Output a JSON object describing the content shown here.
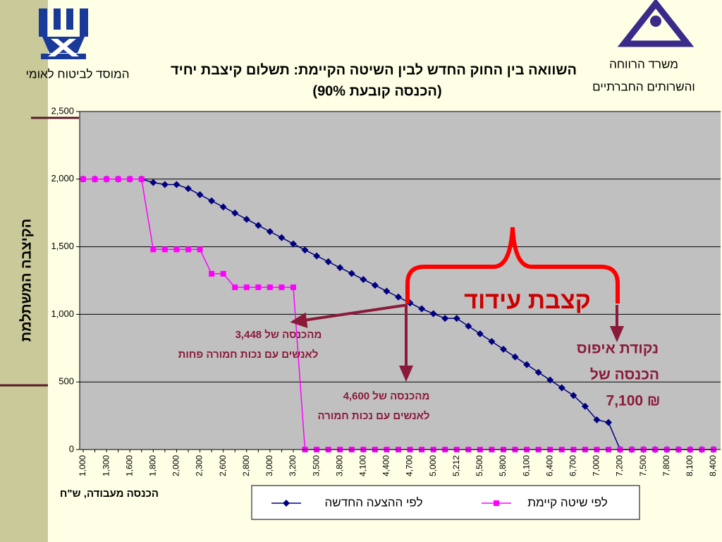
{
  "header": {
    "left_org": "המוסד לביטוח לאומי",
    "right_org": [
      "משרד הרווחה",
      "והשרותים החברתיים"
    ]
  },
  "chart_data": {
    "type": "line",
    "title": "השוואה בין החוק החדש לבין השיטה הקיימת: תשלום קיצבת יחיד",
    "subtitle": "(הכנסה קובעת 90%)",
    "y_label": "הקיצבה המשתלמת",
    "x_label": "הכנסה מעבודה, ש\"ח",
    "categories": [
      "1,000",
      null,
      "1,300",
      null,
      "1,600",
      null,
      "1,800",
      null,
      "2,000",
      null,
      "2,300",
      null,
      "2,600",
      null,
      "2,800",
      null,
      "3,000",
      null,
      "3,200",
      null,
      "3,500",
      null,
      "3,800",
      null,
      "4,100",
      null,
      "4,400",
      null,
      "4,700",
      null,
      "5,000",
      null,
      "5,212",
      null,
      "5,500",
      null,
      "5,800",
      null,
      "6,100",
      null,
      "6,400",
      null,
      "6,700",
      null,
      "7,000",
      null,
      "7,200",
      null,
      "7,500",
      null,
      "7,800",
      null,
      "8,100",
      null,
      "8,400"
    ],
    "series": [
      {
        "name": "לפי ההצעה  החדשה",
        "color": "#000080",
        "marker": "diamond",
        "values": [
          2000,
          2000,
          2000,
          2000,
          2000,
          2000,
          1975,
          1960,
          1960,
          1930,
          1885,
          1839,
          1794,
          1749,
          1703,
          1658,
          1612,
          1567,
          1521,
          1476,
          1432,
          1389,
          1345,
          1302,
          1258,
          1215,
          1171,
          1128,
          1084,
          1041,
          1005,
          970,
          970,
          913,
          856,
          799,
          742,
          685,
          628,
          571,
          514,
          457,
          400,
          320,
          220,
          200,
          0,
          0,
          0,
          0,
          0,
          0,
          0,
          0,
          0
        ]
      },
      {
        "name": "לפי שיטה קיימת",
        "color": "#ff00ff",
        "marker": "square",
        "values": [
          2000,
          2000,
          2000,
          2000,
          2000,
          2000,
          1480,
          1480,
          1480,
          1480,
          1480,
          1300,
          1300,
          1200,
          1200,
          1200,
          1200,
          1200,
          1200,
          0,
          0,
          0,
          0,
          0,
          0,
          0,
          0,
          0,
          0,
          0,
          0,
          0,
          0,
          0,
          0,
          0,
          0,
          0,
          0,
          0,
          0,
          0,
          0,
          0,
          0,
          0,
          0,
          0,
          0,
          0,
          0,
          0,
          0,
          0,
          0
        ]
      }
    ],
    "ylim": [
      0,
      2500
    ],
    "yticks": [
      0,
      {
        "value": 500,
        "label": "500"
      },
      {
        "value": 1000,
        "label": "1,000"
      },
      {
        "value": 1500,
        "label": "1,500"
      },
      {
        "value": 2000,
        "label": "2,000"
      },
      {
        "value": 2500,
        "label": "2,500"
      }
    ],
    "grid": true,
    "annotations": [
      "קצבת עידוד",
      "מהכנסה של 3,448",
      "לאנשים עם נכות חמורה פחות",
      "מהכנסה של 4,600",
      "לאנשים עם נכות חמורה",
      "נקודת איפוס",
      "הכנסה של",
      "7,100 ₪"
    ]
  }
}
